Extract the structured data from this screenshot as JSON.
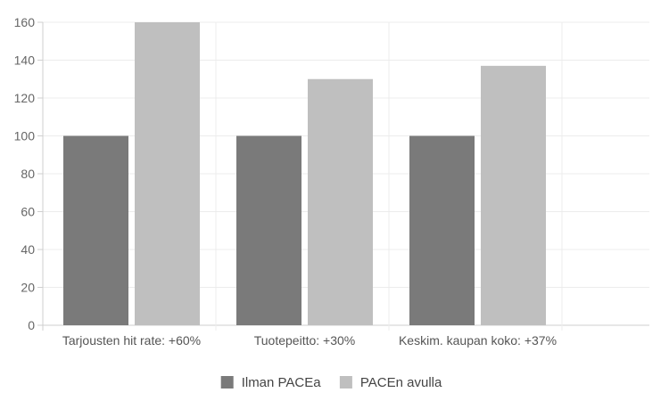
{
  "chart_data": {
    "type": "bar",
    "categories": [
      "Tarjousten hit rate: +60%",
      "Tuotepeitto: +30%",
      "Keskim. kaupan koko: +37%"
    ],
    "series": [
      {
        "name": "Ilman PACEa",
        "values": [
          100,
          100,
          100
        ],
        "color": "#7a7a7a"
      },
      {
        "name": "PACEn avulla",
        "values": [
          160,
          130,
          137
        ],
        "color": "#bfbfbf"
      }
    ],
    "ylim": [
      0,
      160
    ],
    "yticks": [
      0,
      20,
      40,
      60,
      80,
      100,
      120,
      140,
      160
    ],
    "grid": true,
    "legend_position": "bottom",
    "title": "",
    "xlabel": "",
    "ylabel": ""
  }
}
